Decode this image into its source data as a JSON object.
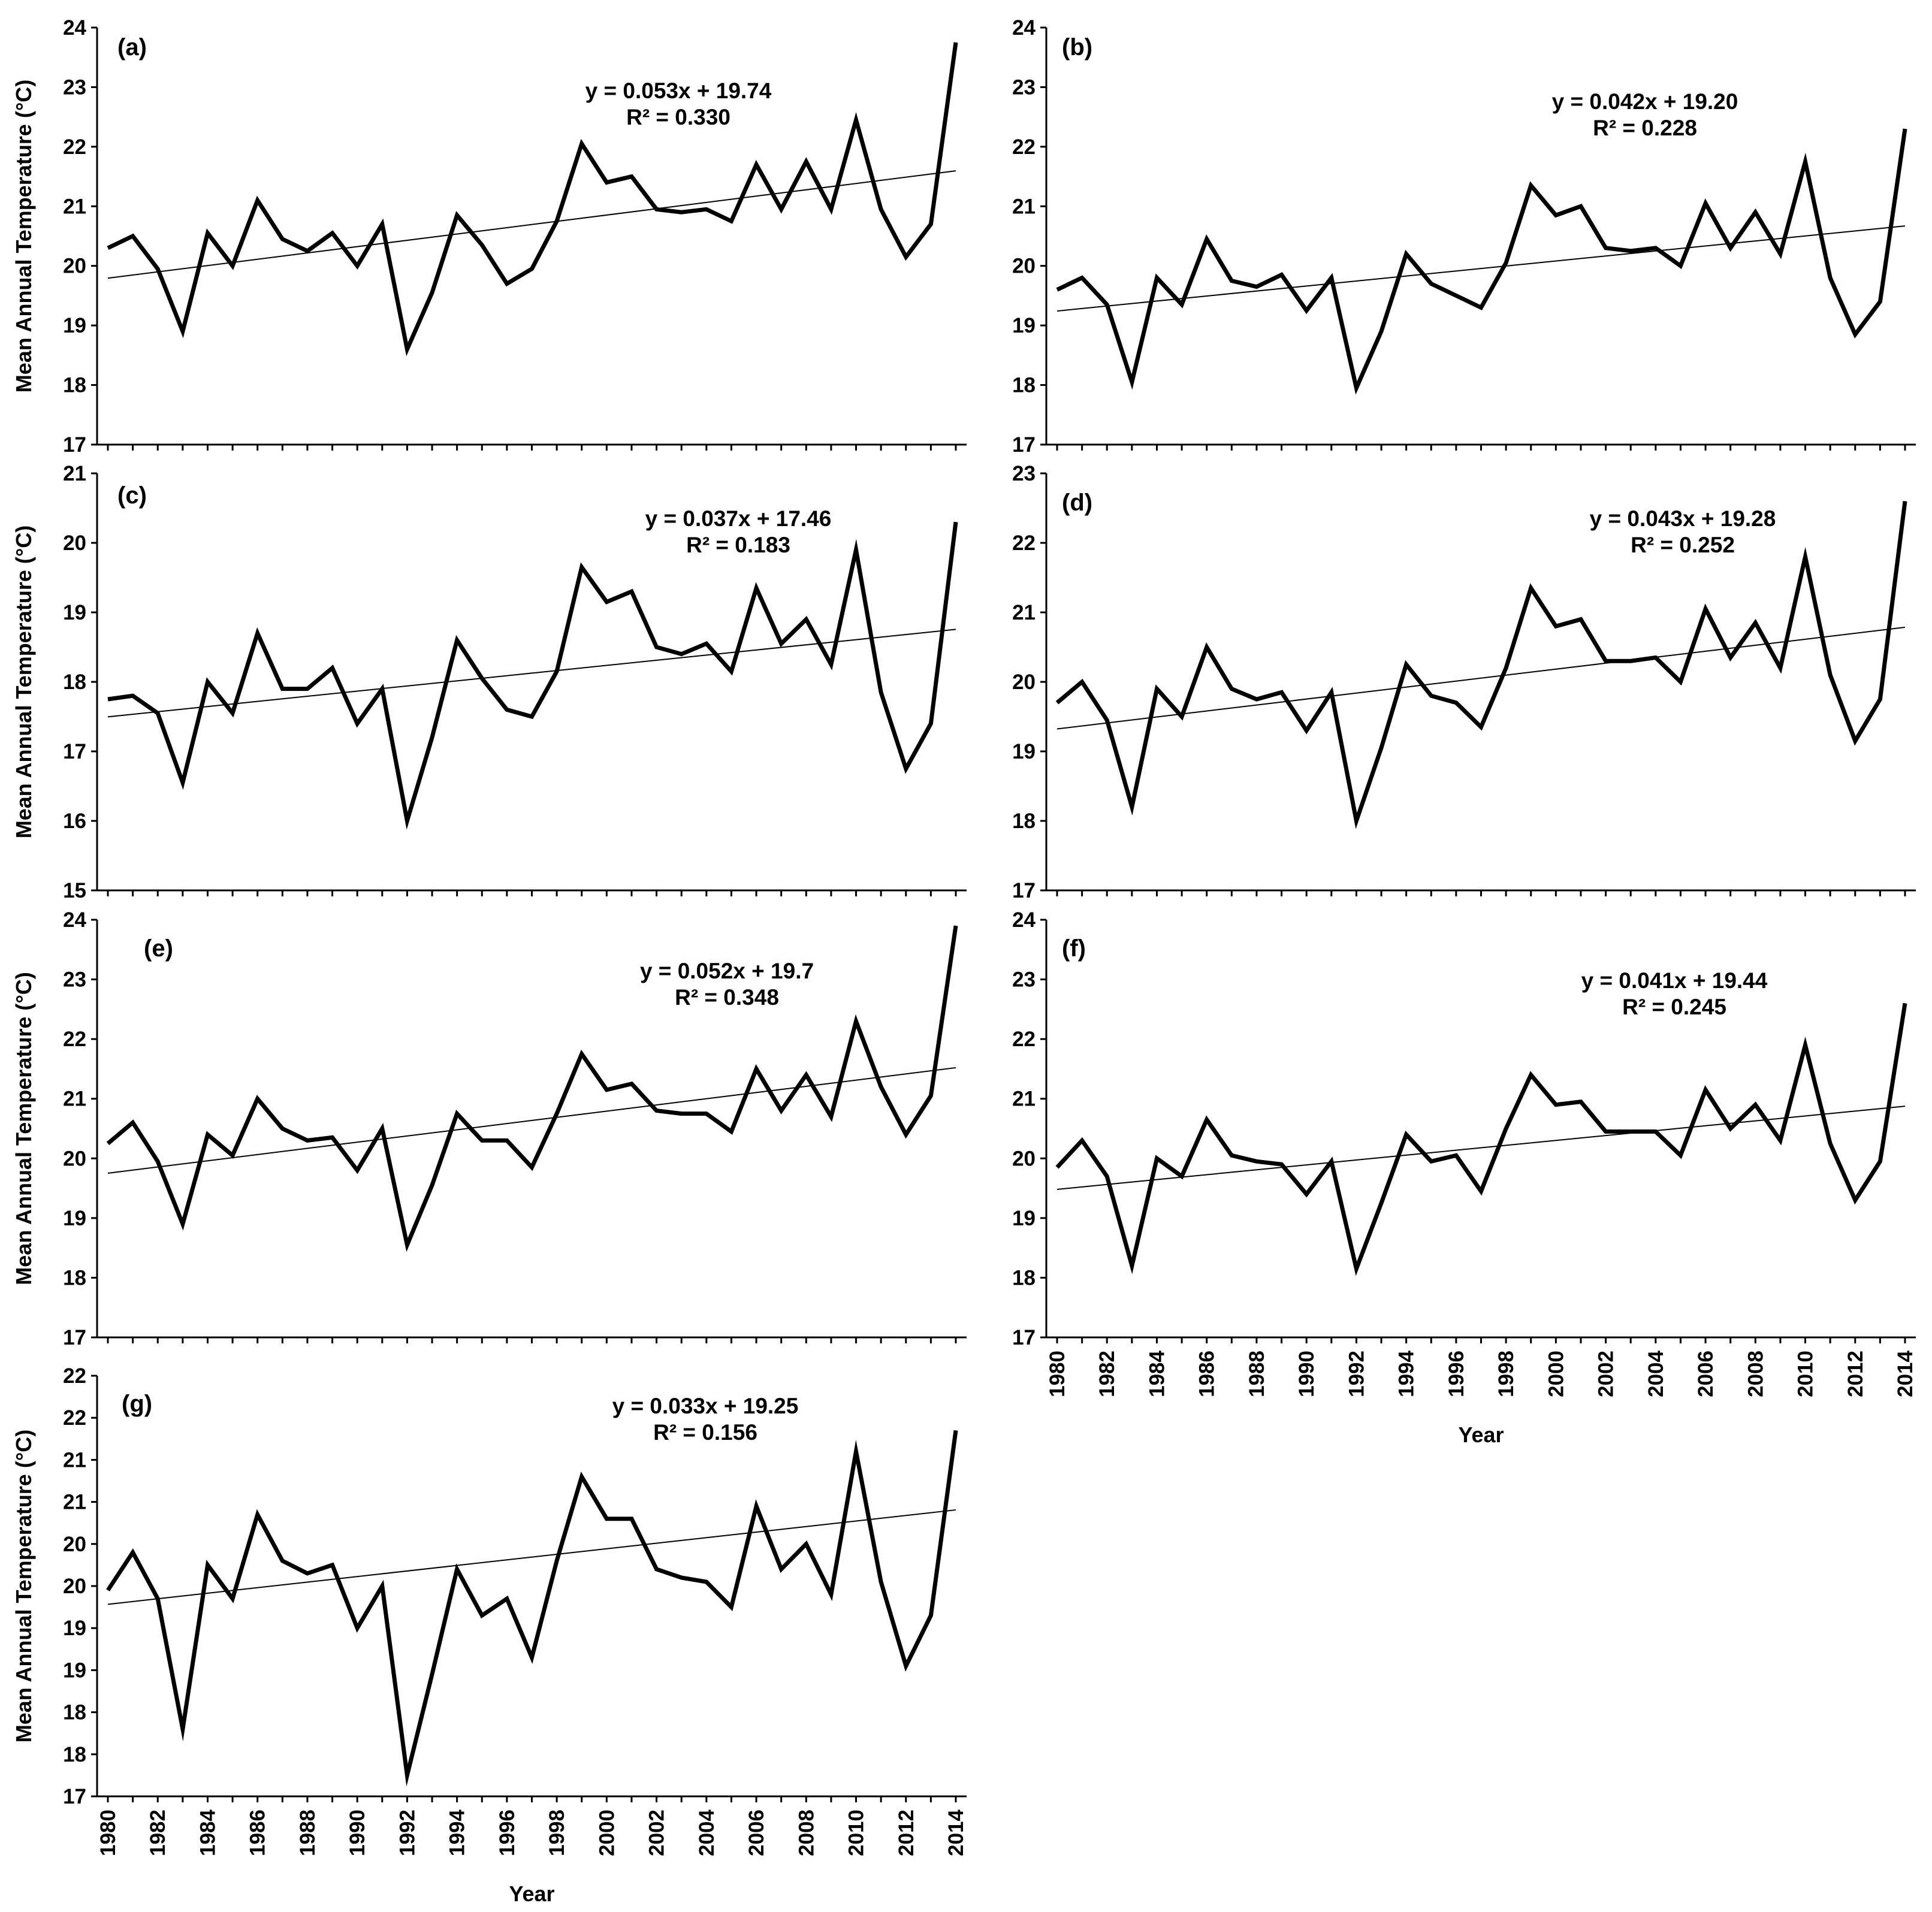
{
  "chart_data": [
    {
      "id": "a",
      "type": "line",
      "panel_label": "(a)",
      "ylabel": "Mean Annual Temperature (°C)",
      "xlabel": "",
      "ylim": [
        17,
        24
      ],
      "y_ticks": [
        "17",
        "18",
        "19",
        "20",
        "21",
        "22",
        "23",
        "24"
      ],
      "x": [
        1980,
        1981,
        1982,
        1983,
        1984,
        1985,
        1986,
        1987,
        1988,
        1989,
        1990,
        1991,
        1992,
        1993,
        1994,
        1995,
        1996,
        1997,
        1998,
        1999,
        2000,
        2001,
        2002,
        2003,
        2004,
        2005,
        2006,
        2007,
        2008,
        2009,
        2010,
        2011,
        2012,
        2013,
        2014
      ],
      "values": [
        20.3,
        20.5,
        19.95,
        18.9,
        20.55,
        20.0,
        21.1,
        20.45,
        20.25,
        20.55,
        20.0,
        20.7,
        18.6,
        19.55,
        20.85,
        20.35,
        19.7,
        19.95,
        20.75,
        22.05,
        21.4,
        21.5,
        20.95,
        20.9,
        20.95,
        20.75,
        21.7,
        20.95,
        21.75,
        20.95,
        22.45,
        20.95,
        20.15,
        20.7,
        23.75
      ],
      "trend": {
        "slope": 0.053,
        "intercept": 19.74
      },
      "equation": "y = 0.053x + 19.74",
      "r2": "R² = 0.330"
    },
    {
      "id": "b",
      "type": "line",
      "panel_label": "(b)",
      "ylabel": "",
      "xlabel": "",
      "ylim": [
        17,
        24
      ],
      "y_ticks": [
        "17",
        "18",
        "19",
        "20",
        "21",
        "22",
        "23",
        "24"
      ],
      "x": [
        1980,
        1981,
        1982,
        1983,
        1984,
        1985,
        1986,
        1987,
        1988,
        1989,
        1990,
        1991,
        1992,
        1993,
        1994,
        1995,
        1996,
        1997,
        1998,
        1999,
        2000,
        2001,
        2002,
        2003,
        2004,
        2005,
        2006,
        2007,
        2008,
        2009,
        2010,
        2011,
        2012,
        2013,
        2014
      ],
      "values": [
        19.6,
        19.8,
        19.35,
        18.05,
        19.8,
        19.35,
        20.45,
        19.75,
        19.65,
        19.85,
        19.25,
        19.8,
        17.95,
        18.9,
        20.2,
        19.7,
        19.5,
        19.3,
        20.05,
        21.35,
        20.85,
        21.0,
        20.3,
        20.25,
        20.3,
        20.0,
        21.05,
        20.3,
        20.9,
        20.2,
        21.75,
        19.8,
        18.85,
        19.4,
        22.3
      ],
      "trend": {
        "slope": 0.042,
        "intercept": 19.2
      },
      "equation": "y = 0.042x + 19.20",
      "r2": "R² = 0.228"
    },
    {
      "id": "c",
      "type": "line",
      "panel_label": "(c)",
      "ylabel": "Mean Annual Temperature (°C)",
      "xlabel": "",
      "ylim": [
        15,
        21
      ],
      "y_ticks": [
        "15",
        "16",
        "17",
        "18",
        "19",
        "20",
        "21"
      ],
      "x": [
        1980,
        1981,
        1982,
        1983,
        1984,
        1985,
        1986,
        1987,
        1988,
        1989,
        1990,
        1991,
        1992,
        1993,
        1994,
        1995,
        1996,
        1997,
        1998,
        1999,
        2000,
        2001,
        2002,
        2003,
        2004,
        2005,
        2006,
        2007,
        2008,
        2009,
        2010,
        2011,
        2012,
        2013,
        2014
      ],
      "values": [
        17.75,
        17.8,
        17.55,
        16.55,
        18.0,
        17.55,
        18.7,
        17.9,
        17.9,
        18.2,
        17.4,
        17.9,
        16.0,
        17.2,
        18.6,
        18.05,
        17.6,
        17.5,
        18.15,
        19.65,
        19.15,
        19.3,
        18.5,
        18.4,
        18.55,
        18.15,
        19.35,
        18.55,
        18.9,
        18.25,
        19.9,
        17.85,
        16.75,
        17.4,
        20.3
      ],
      "trend": {
        "slope": 0.037,
        "intercept": 17.46
      },
      "equation": "y = 0.037x + 17.46",
      "r2": "R² = 0.183"
    },
    {
      "id": "d",
      "type": "line",
      "panel_label": "(d)",
      "ylabel": "",
      "xlabel": "",
      "ylim": [
        17,
        23
      ],
      "y_ticks": [
        "17",
        "18",
        "19",
        "20",
        "21",
        "22",
        "23"
      ],
      "x": [
        1980,
        1981,
        1982,
        1983,
        1984,
        1985,
        1986,
        1987,
        1988,
        1989,
        1990,
        1991,
        1992,
        1993,
        1994,
        1995,
        1996,
        1997,
        1998,
        1999,
        2000,
        2001,
        2002,
        2003,
        2004,
        2005,
        2006,
        2007,
        2008,
        2009,
        2010,
        2011,
        2012,
        2013,
        2014
      ],
      "values": [
        19.7,
        20.0,
        19.45,
        18.2,
        19.9,
        19.5,
        20.5,
        19.9,
        19.75,
        19.85,
        19.3,
        19.85,
        18.0,
        19.05,
        20.25,
        19.8,
        19.7,
        19.35,
        20.2,
        21.35,
        20.8,
        20.9,
        20.3,
        20.3,
        20.35,
        20.0,
        21.05,
        20.35,
        20.85,
        20.2,
        21.8,
        20.1,
        19.15,
        19.75,
        22.6
      ],
      "trend": {
        "slope": 0.043,
        "intercept": 19.28
      },
      "equation": "y = 0.043x + 19.28",
      "r2": "R² = 0.252"
    },
    {
      "id": "e",
      "type": "line",
      "panel_label": "(e)",
      "ylabel": "Mean Annual Temperature (°C)",
      "xlabel": "",
      "ylim": [
        17,
        24
      ],
      "y_ticks": [
        "17",
        "18",
        "19",
        "20",
        "21",
        "22",
        "23",
        "24"
      ],
      "x": [
        1980,
        1981,
        1982,
        1983,
        1984,
        1985,
        1986,
        1987,
        1988,
        1989,
        1990,
        1991,
        1992,
        1993,
        1994,
        1995,
        1996,
        1997,
        1998,
        1999,
        2000,
        2001,
        2002,
        2003,
        2004,
        2005,
        2006,
        2007,
        2008,
        2009,
        2010,
        2011,
        2012,
        2013,
        2014
      ],
      "values": [
        20.25,
        20.6,
        19.95,
        18.9,
        20.4,
        20.05,
        21.0,
        20.5,
        20.3,
        20.35,
        19.8,
        20.5,
        18.55,
        19.55,
        20.75,
        20.3,
        20.3,
        19.85,
        20.75,
        21.75,
        21.15,
        21.25,
        20.8,
        20.75,
        20.75,
        20.45,
        21.5,
        20.8,
        21.4,
        20.7,
        22.3,
        21.2,
        20.4,
        21.05,
        23.9
      ],
      "trend": {
        "slope": 0.052,
        "intercept": 19.7
      },
      "equation": "y = 0.052x + 19.7",
      "r2": "R² = 0.348"
    },
    {
      "id": "f",
      "type": "line",
      "panel_label": "(f)",
      "ylabel": "",
      "xlabel": "Year",
      "ylim": [
        17,
        24
      ],
      "y_ticks": [
        "17",
        "18",
        "19",
        "20",
        "21",
        "22",
        "23",
        "24"
      ],
      "x_ticks": [
        "1980",
        "1982",
        "1984",
        "1986",
        "1988",
        "1990",
        "1992",
        "1994",
        "1996",
        "1998",
        "2000",
        "2002",
        "2004",
        "2006",
        "2008",
        "2010",
        "2012",
        "2014"
      ],
      "x": [
        1980,
        1981,
        1982,
        1983,
        1984,
        1985,
        1986,
        1987,
        1988,
        1989,
        1990,
        1991,
        1992,
        1993,
        1994,
        1995,
        1996,
        1997,
        1998,
        1999,
        2000,
        2001,
        2002,
        2003,
        2004,
        2005,
        2006,
        2007,
        2008,
        2009,
        2010,
        2011,
        2012,
        2013,
        2014
      ],
      "values": [
        19.85,
        20.3,
        19.7,
        18.2,
        20.0,
        19.7,
        20.65,
        20.05,
        19.95,
        19.9,
        19.4,
        19.95,
        18.15,
        19.25,
        20.4,
        19.95,
        20.05,
        19.45,
        20.5,
        21.4,
        20.9,
        20.95,
        20.45,
        20.45,
        20.45,
        20.05,
        21.15,
        20.5,
        20.9,
        20.3,
        21.9,
        20.25,
        19.3,
        19.95,
        22.6
      ],
      "trend": {
        "slope": 0.041,
        "intercept": 19.44
      },
      "equation": "y = 0.041x + 19.44",
      "r2": "R² = 0.245"
    },
    {
      "id": "g",
      "type": "line",
      "panel_label": "(g)",
      "ylabel": "Mean Annual Temperature (°C)",
      "xlabel": "Year",
      "ylim": [
        17,
        22
      ],
      "y_ticks": [
        "17",
        "18",
        "18",
        "19",
        "19",
        "20",
        "20",
        "21",
        "21",
        "22",
        "22"
      ],
      "x_ticks": [
        "1980",
        "1982",
        "1984",
        "1986",
        "1988",
        "1990",
        "1992",
        "1994",
        "1996",
        "1998",
        "2000",
        "2002",
        "2004",
        "2006",
        "2008",
        "2010",
        "2012",
        "2014"
      ],
      "x": [
        1980,
        1981,
        1982,
        1983,
        1984,
        1985,
        1986,
        1987,
        1988,
        1989,
        1990,
        1991,
        1992,
        1993,
        1994,
        1995,
        1996,
        1997,
        1998,
        1999,
        2000,
        2001,
        2002,
        2003,
        2004,
        2005,
        2006,
        2007,
        2008,
        2009,
        2010,
        2011,
        2012,
        2013,
        2014
      ],
      "values": [
        19.45,
        19.9,
        19.35,
        17.8,
        19.75,
        19.35,
        20.35,
        19.8,
        19.65,
        19.75,
        19.0,
        19.5,
        17.25,
        18.45,
        19.7,
        19.15,
        19.35,
        18.65,
        19.8,
        20.8,
        20.3,
        20.3,
        19.7,
        19.6,
        19.55,
        19.25,
        20.45,
        19.7,
        20.0,
        19.4,
        21.1,
        19.55,
        18.55,
        19.15,
        21.35
      ],
      "trend": {
        "slope": 0.033,
        "intercept": 19.25
      },
      "equation": "y = 0.033x + 19.25",
      "r2": "R² = 0.156"
    }
  ]
}
